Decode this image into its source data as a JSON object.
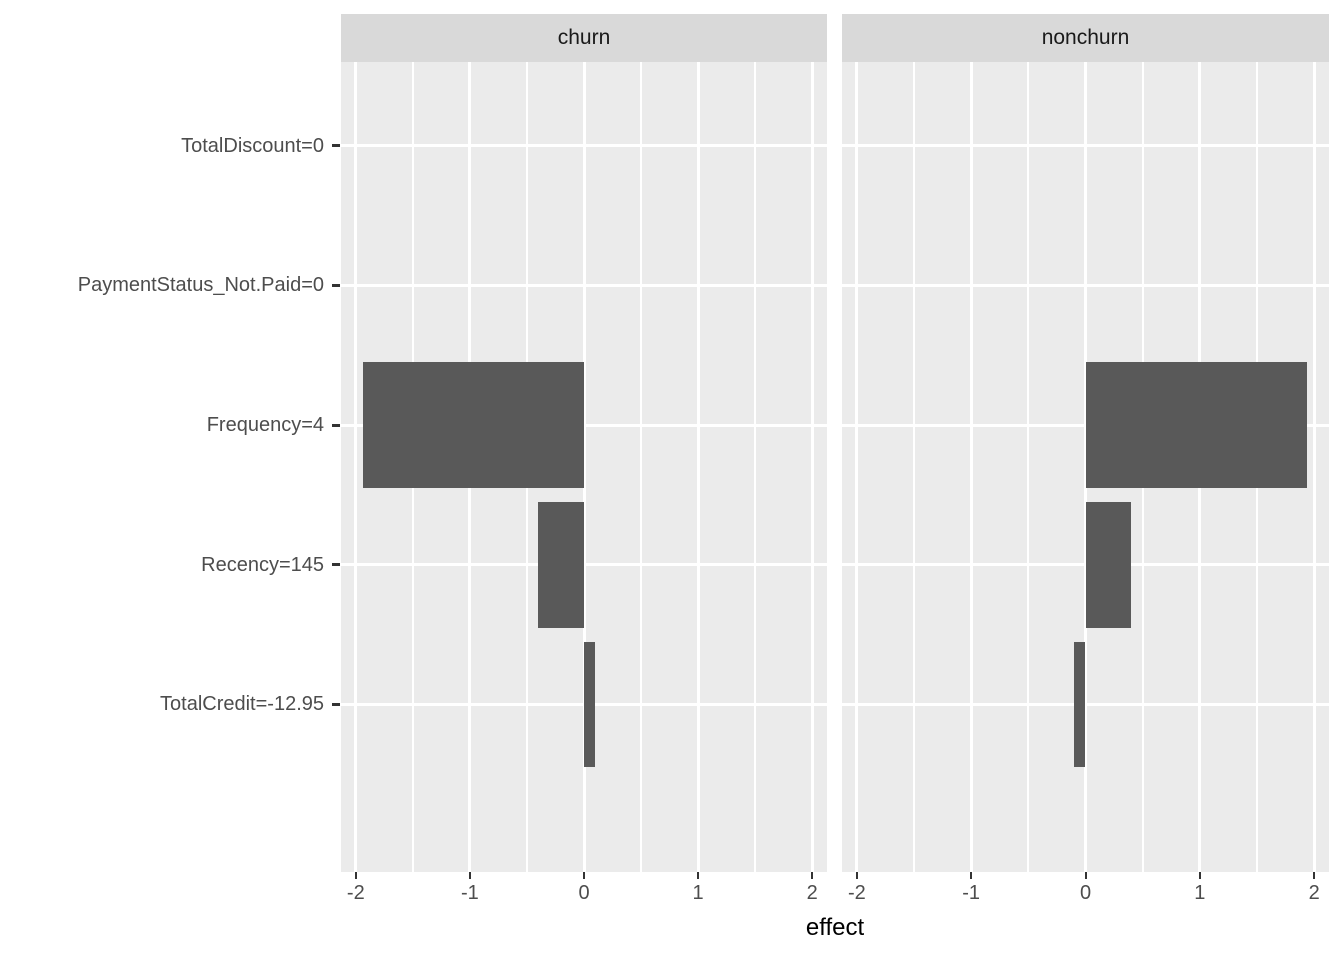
{
  "chart_data": {
    "type": "bar",
    "orientation": "horizontal",
    "title": "",
    "xlabel": "effect",
    "ylabel": "",
    "categories": [
      "TotalDiscount=0",
      "PaymentStatus_Not.Paid=0",
      "Frequency=4",
      "Recency=145",
      "TotalCredit=-12.95"
    ],
    "facets": [
      {
        "label": "churn",
        "values": [
          0,
          0,
          -1.94,
          -0.4,
          0.1
        ]
      },
      {
        "label": "nonchurn",
        "values": [
          0,
          0,
          1.94,
          0.4,
          -0.1
        ]
      }
    ],
    "x_ticks": [
      "-2",
      "-1",
      "0",
      "1",
      "2"
    ],
    "x_tick_values": [
      -2,
      -1,
      0,
      1,
      2
    ],
    "x_minor_tick_values": [
      -1.5,
      -0.5,
      0.5,
      1.5
    ],
    "xlim": [
      -2.13,
      2.13
    ],
    "bar_width_fraction": 0.9,
    "grid": "on",
    "legend": "none"
  },
  "style": {
    "bar_fill": "#595959",
    "panel_bg": "#EBEBEB",
    "strip_bg": "#D9D9D9",
    "grid_color": "#FFFFFF",
    "tick_mark_color": "#333333",
    "axis_text_color": "#4D4D4D",
    "strip_text_color": "#1A1A1A",
    "title_color": "#000000"
  }
}
